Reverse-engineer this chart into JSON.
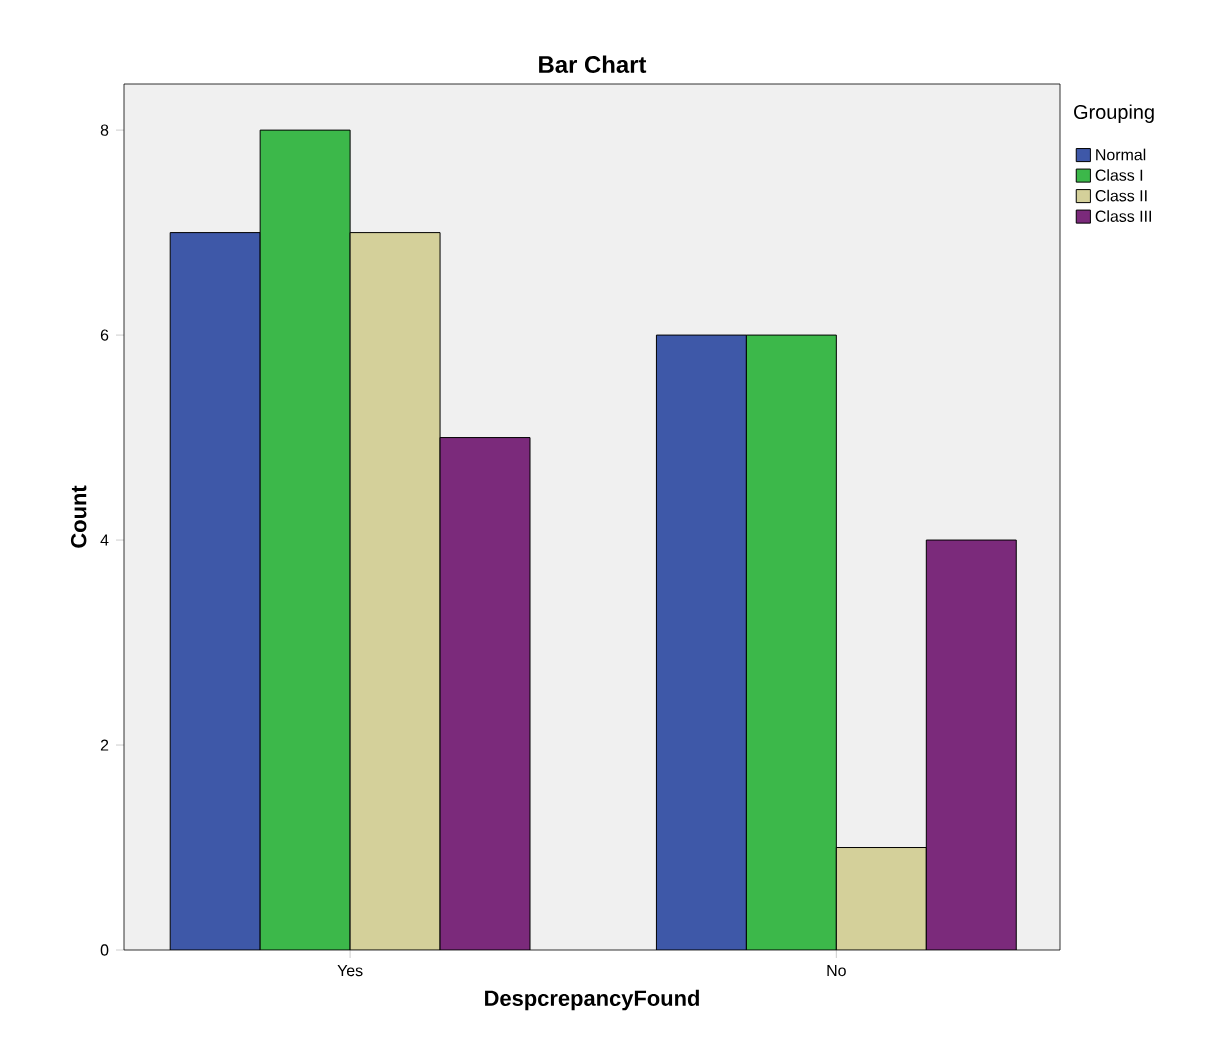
{
  "chart_data": {
    "type": "bar",
    "title": "Bar Chart",
    "xlabel": "DespcrepancyFound",
    "ylabel": "Count",
    "legend_title": "Grouping",
    "legend": "top right",
    "categories": [
      "Yes",
      "No"
    ],
    "series": [
      {
        "name": "Normal",
        "color": "#3e58a8",
        "values": [
          7,
          6
        ]
      },
      {
        "name": "Class I",
        "color": "#3cb84a",
        "values": [
          8,
          6
        ]
      },
      {
        "name": "Class II",
        "color": "#d4d09a",
        "values": [
          7,
          1
        ]
      },
      {
        "name": "Class III",
        "color": "#7b2a7b",
        "values": [
          5,
          4
        ]
      }
    ],
    "ylim": [
      0,
      8.45
    ],
    "yticks": [
      0,
      2,
      4,
      6,
      8
    ]
  }
}
